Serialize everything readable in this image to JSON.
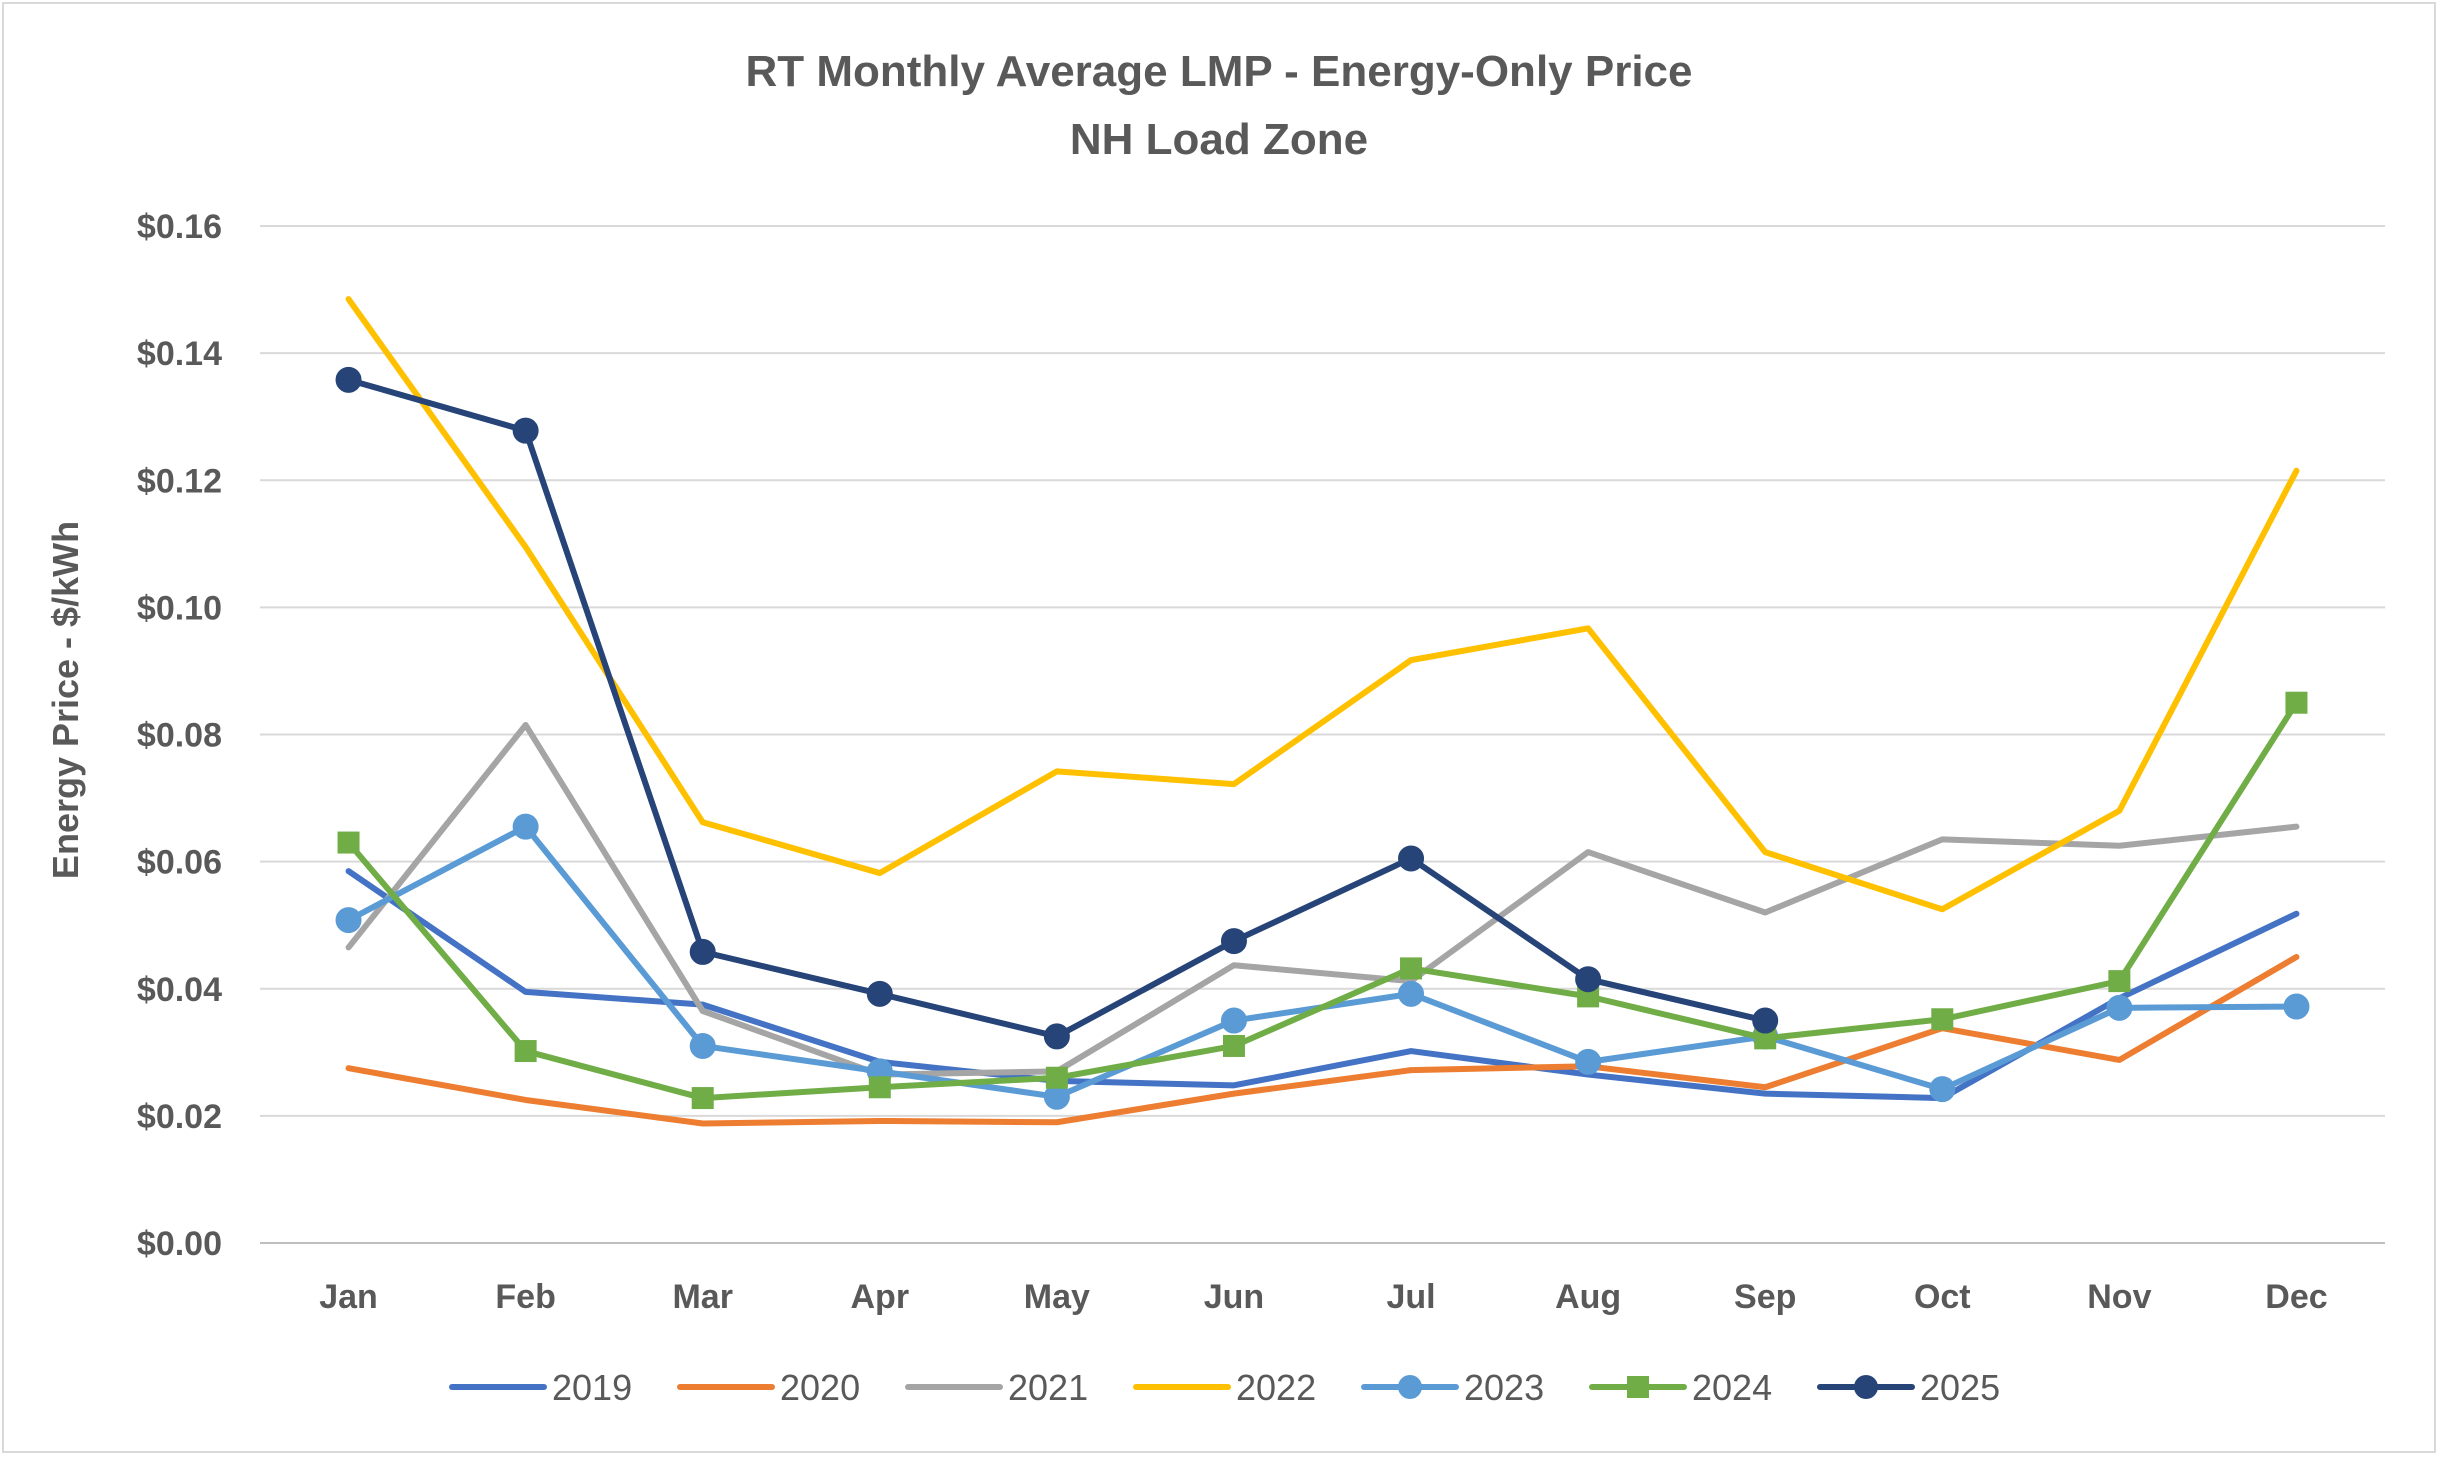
{
  "chart_data": {
    "type": "line",
    "title": "RT Monthly Average LMP - Energy-Only Price",
    "subtitle": "NH Load Zone",
    "xlabel": "",
    "ylabel": "Energy Price - $/kWh",
    "ylim": [
      0,
      0.16
    ],
    "yticks": [
      0.0,
      0.02,
      0.04,
      0.06,
      0.08,
      0.1,
      0.12,
      0.14,
      0.16
    ],
    "ytick_labels": [
      "$0.00",
      "$0.02",
      "$0.04",
      "$0.06",
      "$0.08",
      "$0.10",
      "$0.12",
      "$0.14",
      "$0.16"
    ],
    "grid": true,
    "legend_position": "bottom",
    "categories": [
      "Jan",
      "Feb",
      "Mar",
      "Apr",
      "May",
      "Jun",
      "Jul",
      "Aug",
      "Sep",
      "Oct",
      "Nov",
      "Dec"
    ],
    "series": [
      {
        "name": "2019",
        "color": "#4472c4",
        "marker": "none",
        "values": [
          0.0585,
          0.0395,
          0.0375,
          0.0285,
          0.0255,
          0.0248,
          0.0302,
          0.0265,
          0.0235,
          0.0228,
          0.0385,
          0.0518
        ]
      },
      {
        "name": "2020",
        "color": "#ed7d31",
        "marker": "none",
        "values": [
          0.0275,
          0.0225,
          0.0188,
          0.0192,
          0.019,
          0.0235,
          0.0272,
          0.0278,
          0.0245,
          0.0338,
          0.0288,
          0.045
        ]
      },
      {
        "name": "2021",
        "color": "#a5a5a5",
        "marker": "none",
        "values": [
          0.0465,
          0.0815,
          0.0365,
          0.0265,
          0.027,
          0.0437,
          0.0412,
          0.0615,
          0.052,
          0.0635,
          0.0625,
          0.0655
        ]
      },
      {
        "name": "2022",
        "color": "#ffc000",
        "marker": "none",
        "values": [
          0.1485,
          0.1095,
          0.0662,
          0.0582,
          0.0742,
          0.0722,
          0.0917,
          0.0967,
          0.0615,
          0.0525,
          0.068,
          0.1215
        ]
      },
      {
        "name": "2023",
        "color": "#5b9bd5",
        "marker": "circle",
        "values": [
          0.0508,
          0.0655,
          0.031,
          0.027,
          0.023,
          0.035,
          0.0392,
          0.0285,
          0.0325,
          0.0242,
          0.037,
          0.0372
        ]
      },
      {
        "name": "2024",
        "color": "#70ad47",
        "marker": "square",
        "values": [
          0.063,
          0.0302,
          0.0228,
          0.0245,
          0.026,
          0.031,
          0.0432,
          0.0388,
          0.0322,
          0.0352,
          0.0412,
          0.085
        ]
      },
      {
        "name": "2025",
        "color": "#264478",
        "marker": "circle",
        "values": [
          0.1358,
          0.1278,
          0.0458,
          0.0392,
          0.0325,
          0.0475,
          0.0605,
          0.0415,
          0.035,
          null,
          null,
          null
        ]
      }
    ]
  }
}
